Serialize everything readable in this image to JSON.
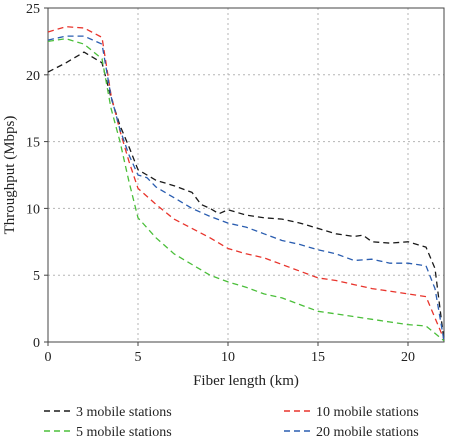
{
  "chart_data": {
    "type": "line",
    "title": "",
    "xlabel": "Fiber length (km)",
    "ylabel": "Throughput (Mbps)",
    "xlim": [
      0,
      22
    ],
    "ylim": [
      0,
      25
    ],
    "xticks": [
      0,
      5,
      10,
      15,
      20
    ],
    "yticks": [
      0,
      5,
      10,
      15,
      20,
      25
    ],
    "x_tick_labels": [
      "0",
      "5",
      "10",
      "15",
      "20"
    ],
    "y_tick_labels": [
      "0",
      "5",
      "10",
      "15",
      "20",
      "25"
    ],
    "grid": true,
    "line_style": "dashed",
    "legend_position": "bottom",
    "series": [
      {
        "name": "3 mobile stations",
        "color": "#1a1a1a",
        "x": [
          0,
          1,
          2,
          3,
          3.5,
          4,
          4.5,
          5,
          5.5,
          6,
          7,
          8,
          8.5,
          9,
          9.5,
          10,
          11,
          12,
          13,
          14,
          15,
          16,
          17,
          17.5,
          18,
          19,
          20,
          21,
          21.5,
          22
        ],
        "y": [
          20.2,
          20.9,
          21.7,
          20.9,
          18.3,
          16.2,
          14.6,
          12.9,
          12.5,
          12.1,
          11.7,
          11.2,
          10.3,
          10.0,
          9.6,
          9.9,
          9.5,
          9.3,
          9.2,
          8.9,
          8.5,
          8.1,
          7.9,
          8.0,
          7.5,
          7.4,
          7.5,
          7.1,
          5.5,
          0.1
        ]
      },
      {
        "name": "5 mobile stations",
        "color": "#4bbf3a",
        "x": [
          0,
          1,
          2,
          3,
          3.5,
          4,
          4.5,
          5,
          6,
          7,
          8,
          9,
          10,
          11,
          12,
          13,
          14,
          15,
          16,
          17,
          18,
          19,
          20,
          21,
          22
        ],
        "y": [
          22.5,
          22.7,
          22.3,
          21.2,
          17.5,
          15.0,
          12.0,
          9.3,
          7.8,
          6.6,
          5.8,
          5.0,
          4.5,
          4.1,
          3.6,
          3.3,
          2.8,
          2.3,
          2.1,
          1.9,
          1.7,
          1.5,
          1.3,
          1.2,
          0.1
        ]
      },
      {
        "name": "10 mobile stations",
        "color": "#e8342c",
        "x": [
          0,
          1,
          2,
          3,
          3.5,
          4,
          4.5,
          5,
          6,
          7,
          8,
          9,
          10,
          11,
          12,
          13,
          14,
          15,
          16,
          17,
          18,
          19,
          20,
          21,
          22
        ],
        "y": [
          23.2,
          23.6,
          23.5,
          22.8,
          18.5,
          15.8,
          13.5,
          11.5,
          10.3,
          9.2,
          8.5,
          7.8,
          7.0,
          6.6,
          6.3,
          5.8,
          5.3,
          4.8,
          4.6,
          4.3,
          4.0,
          3.8,
          3.6,
          3.4,
          0.2
        ]
      },
      {
        "name": "20 mobile stations",
        "color": "#2a5db0",
        "x": [
          0,
          1,
          2,
          3,
          3.5,
          4,
          4.5,
          5,
          5.5,
          6,
          7,
          8,
          9,
          10,
          11,
          12,
          13,
          14,
          15,
          16,
          17,
          18,
          19,
          20,
          21,
          21.5,
          22
        ],
        "y": [
          22.6,
          22.9,
          22.9,
          22.3,
          18.4,
          15.9,
          14.0,
          12.5,
          12.3,
          11.6,
          10.8,
          10.0,
          9.4,
          8.9,
          8.6,
          8.1,
          7.6,
          7.3,
          6.9,
          6.6,
          6.1,
          6.2,
          5.9,
          5.9,
          5.7,
          4.0,
          0.1
        ]
      }
    ]
  }
}
